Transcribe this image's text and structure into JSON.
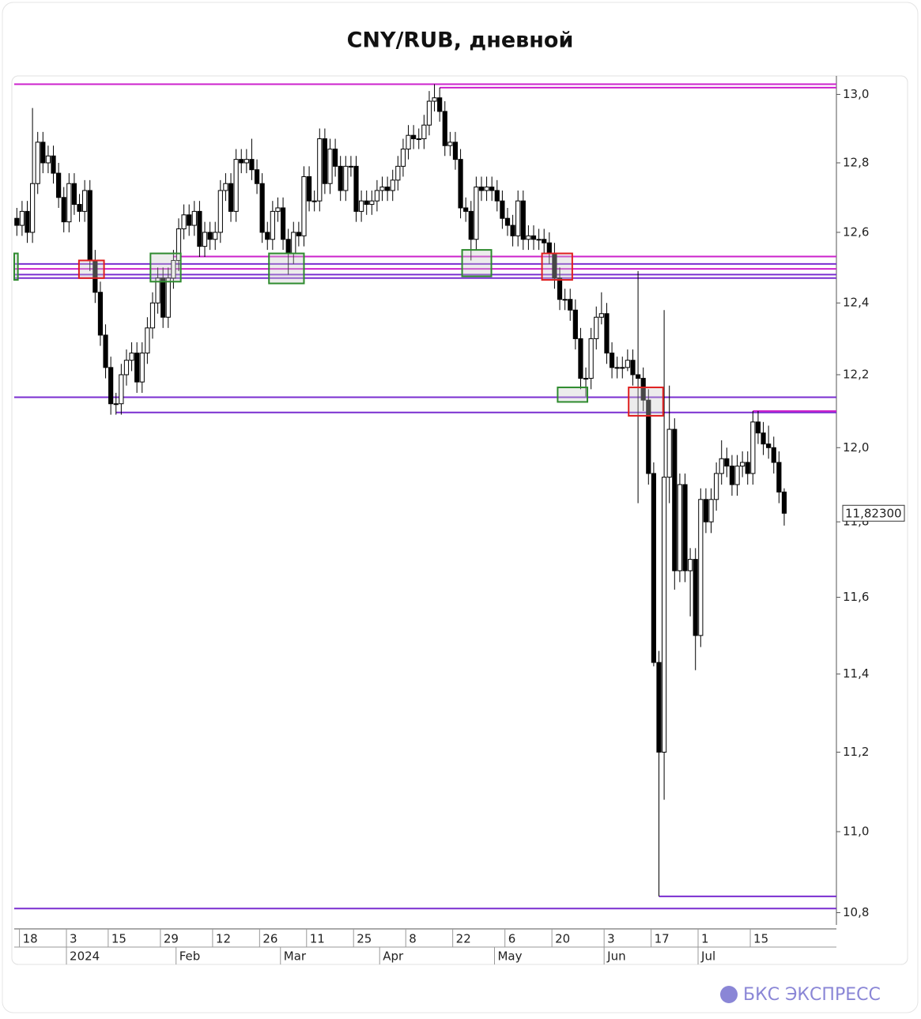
{
  "chart_data": {
    "type": "candlestick",
    "title": "CNY/RUB, дневной",
    "brand": "БКС ЭКСПРЕСС",
    "log_scale": true,
    "ylim": [
      10.77,
      13.05
    ],
    "xlim": [
      -0.5,
      157
    ],
    "yticks": [
      {
        "value": 10.8,
        "label": "10,8"
      },
      {
        "value": 11.0,
        "label": "11,0"
      },
      {
        "value": 11.2,
        "label": "11,2"
      },
      {
        "value": 11.4,
        "label": "11,4"
      },
      {
        "value": 11.6,
        "label": "11,6"
      },
      {
        "value": 11.8,
        "label": "11,8"
      },
      {
        "value": 12.0,
        "label": "12,0"
      },
      {
        "value": 12.2,
        "label": "12,2"
      },
      {
        "value": 12.4,
        "label": "12,4"
      },
      {
        "value": 12.6,
        "label": "12,6"
      },
      {
        "value": 12.8,
        "label": "12,8"
      },
      {
        "value": 13.0,
        "label": "13,0"
      }
    ],
    "xticks": [
      {
        "value": 1,
        "label": "18"
      },
      {
        "value": 10,
        "label": "3"
      },
      {
        "value": 18,
        "label": "15"
      },
      {
        "value": 28,
        "label": "29"
      },
      {
        "value": 38,
        "label": "12"
      },
      {
        "value": 47,
        "label": "26"
      },
      {
        "value": 56,
        "label": "11"
      },
      {
        "value": 65,
        "label": "25"
      },
      {
        "value": 75,
        "label": "8"
      },
      {
        "value": 84,
        "label": "22"
      },
      {
        "value": 94,
        "label": "6"
      },
      {
        "value": 103,
        "label": "20"
      },
      {
        "value": 113,
        "label": "3"
      },
      {
        "value": 122,
        "label": "17"
      },
      {
        "value": 131,
        "label": "1"
      },
      {
        "value": 141,
        "label": "15"
      }
    ],
    "month_ticks": [
      {
        "value": 10,
        "label": "2024"
      },
      {
        "value": 31,
        "label": "Feb"
      },
      {
        "value": 51,
        "label": "Mar"
      },
      {
        "value": 70,
        "label": "Apr"
      },
      {
        "value": 92,
        "label": "May"
      },
      {
        "value": 113,
        "label": "Jun"
      },
      {
        "value": 131,
        "label": "Jul"
      }
    ],
    "up_color": "#ffffff",
    "down_color": "#000000",
    "open": [
      12.64,
      12.62,
      12.66,
      12.6,
      12.74,
      12.86,
      12.8,
      12.82,
      12.77,
      12.7,
      12.63,
      12.74,
      12.68,
      12.66,
      12.72,
      12.52,
      12.43,
      12.31,
      12.22,
      12.12,
      12.12,
      12.2,
      12.24,
      12.26,
      12.18,
      12.26,
      12.33,
      12.4,
      12.47,
      12.36,
      12.47,
      12.52,
      12.61,
      12.65,
      12.62,
      12.66,
      12.56,
      12.6,
      12.58,
      12.6,
      12.72,
      12.74,
      12.66,
      12.81,
      12.8,
      12.81,
      12.78,
      12.74,
      12.6,
      12.58,
      12.66,
      12.67,
      12.58,
      12.54,
      12.6,
      12.59,
      12.76,
      12.69,
      12.69,
      12.87,
      12.74,
      12.84,
      12.79,
      12.72,
      12.79,
      12.79,
      12.66,
      12.69,
      12.68,
      12.69,
      12.72,
      12.73,
      12.72,
      12.75,
      12.79,
      12.84,
      12.88,
      12.87,
      12.87,
      12.91,
      12.98,
      12.99,
      12.95,
      12.85,
      12.86,
      12.81,
      12.67,
      12.66,
      12.58,
      12.73,
      12.72,
      12.73,
      12.72,
      12.69,
      12.64,
      12.62,
      12.59,
      12.69,
      12.58,
      12.59,
      12.58,
      12.58,
      12.57,
      12.54,
      12.47,
      12.41,
      12.41,
      12.38,
      12.3,
      12.19,
      12.19,
      12.3,
      12.36,
      12.37,
      12.26,
      12.22,
      12.22,
      12.22,
      12.24,
      12.2,
      12.19,
      12.13,
      11.93,
      11.43,
      11.2,
      11.92,
      12.05,
      11.67,
      11.9,
      11.67,
      11.7,
      11.5,
      11.86,
      11.8,
      11.86,
      11.93,
      11.97,
      11.95,
      11.9,
      11.95,
      11.96,
      11.93,
      12.07,
      12.04,
      12.01,
      12.0,
      11.96,
      11.88
    ],
    "high": [
      12.67,
      12.69,
      12.69,
      12.96,
      12.89,
      12.89,
      12.85,
      12.85,
      12.8,
      12.73,
      12.77,
      12.77,
      12.71,
      12.75,
      12.75,
      12.55,
      12.46,
      12.34,
      12.25,
      12.15,
      12.23,
      12.27,
      12.29,
      12.29,
      12.29,
      12.36,
      12.43,
      12.5,
      12.5,
      12.5,
      12.55,
      12.64,
      12.68,
      12.68,
      12.69,
      12.69,
      12.63,
      12.63,
      12.63,
      12.75,
      12.77,
      12.77,
      12.84,
      12.84,
      12.84,
      12.87,
      12.81,
      12.77,
      12.63,
      12.69,
      12.7,
      12.7,
      12.61,
      12.63,
      12.63,
      12.79,
      12.79,
      12.72,
      12.9,
      12.9,
      12.87,
      12.87,
      12.82,
      12.82,
      12.82,
      12.82,
      12.72,
      12.72,
      12.72,
      12.75,
      12.76,
      12.76,
      12.78,
      12.82,
      12.87,
      12.91,
      12.91,
      12.9,
      12.94,
      13.01,
      13.03,
      13.02,
      12.98,
      12.89,
      12.89,
      12.84,
      12.7,
      12.69,
      12.76,
      12.76,
      12.76,
      12.76,
      12.75,
      12.72,
      12.67,
      12.65,
      12.72,
      12.72,
      12.62,
      12.62,
      12.61,
      12.61,
      12.6,
      12.57,
      12.5,
      12.44,
      12.44,
      12.41,
      12.33,
      12.22,
      12.33,
      12.39,
      12.43,
      12.4,
      12.29,
      12.25,
      12.25,
      12.27,
      12.27,
      12.49,
      12.22,
      12.16,
      11.96,
      11.46,
      12.38,
      12.17,
      12.08,
      11.93,
      11.93,
      11.73,
      11.73,
      11.89,
      11.89,
      11.89,
      11.96,
      12.02,
      12.0,
      11.98,
      11.98,
      11.99,
      11.99,
      12.1,
      12.1,
      12.07,
      12.06,
      12.03,
      11.99,
      11.89
    ],
    "low": [
      12.59,
      12.59,
      12.57,
      12.57,
      12.71,
      12.77,
      12.77,
      12.74,
      12.67,
      12.6,
      12.6,
      12.65,
      12.63,
      12.63,
      12.49,
      12.4,
      12.28,
      12.19,
      12.09,
      12.09,
      12.09,
      12.17,
      12.21,
      12.15,
      12.15,
      12.23,
      12.3,
      12.37,
      12.33,
      12.33,
      12.44,
      12.49,
      12.58,
      12.59,
      12.59,
      12.53,
      12.53,
      12.55,
      12.55,
      12.57,
      12.69,
      12.63,
      12.63,
      12.77,
      12.77,
      12.75,
      12.71,
      12.57,
      12.55,
      12.55,
      12.63,
      12.55,
      12.48,
      12.51,
      12.56,
      12.56,
      12.66,
      12.66,
      12.66,
      12.71,
      12.71,
      12.76,
      12.69,
      12.69,
      12.76,
      12.63,
      12.63,
      12.65,
      12.65,
      12.66,
      12.69,
      12.69,
      12.69,
      12.72,
      12.76,
      12.81,
      12.84,
      12.84,
      12.84,
      12.88,
      12.95,
      12.92,
      12.82,
      12.82,
      12.78,
      12.64,
      12.63,
      12.52,
      12.55,
      12.69,
      12.69,
      12.69,
      12.66,
      12.61,
      12.59,
      12.56,
      12.56,
      12.55,
      12.55,
      12.55,
      12.55,
      12.54,
      12.51,
      12.44,
      12.38,
      12.38,
      12.35,
      12.27,
      12.16,
      12.14,
      12.16,
      12.27,
      12.34,
      12.23,
      12.19,
      12.19,
      12.19,
      12.21,
      12.17,
      11.85,
      12.1,
      11.9,
      11.42,
      10.84,
      11.08,
      11.85,
      11.62,
      11.64,
      11.64,
      11.55,
      11.41,
      11.47,
      11.77,
      11.77,
      11.83,
      11.9,
      11.92,
      11.87,
      11.87,
      11.92,
      11.9,
      11.9,
      12.01,
      11.98,
      11.97,
      11.93,
      11.85,
      11.79
    ],
    "close": [
      12.62,
      12.66,
      12.6,
      12.74,
      12.86,
      12.8,
      12.82,
      12.77,
      12.7,
      12.63,
      12.74,
      12.68,
      12.66,
      12.72,
      12.52,
      12.43,
      12.31,
      12.22,
      12.12,
      12.12,
      12.2,
      12.24,
      12.26,
      12.18,
      12.26,
      12.33,
      12.4,
      12.47,
      12.36,
      12.47,
      12.52,
      12.61,
      12.65,
      12.62,
      12.66,
      12.56,
      12.6,
      12.58,
      12.6,
      12.72,
      12.74,
      12.66,
      12.81,
      12.8,
      12.81,
      12.78,
      12.74,
      12.6,
      12.58,
      12.66,
      12.67,
      12.58,
      12.54,
      12.6,
      12.59,
      12.76,
      12.69,
      12.69,
      12.87,
      12.74,
      12.84,
      12.79,
      12.72,
      12.79,
      12.79,
      12.66,
      12.69,
      12.68,
      12.69,
      12.72,
      12.73,
      12.72,
      12.75,
      12.79,
      12.84,
      12.88,
      12.87,
      12.87,
      12.91,
      12.98,
      12.99,
      12.95,
      12.85,
      12.86,
      12.81,
      12.67,
      12.66,
      12.58,
      12.73,
      12.72,
      12.73,
      12.72,
      12.69,
      12.64,
      12.62,
      12.59,
      12.69,
      12.58,
      12.59,
      12.58,
      12.58,
      12.57,
      12.54,
      12.47,
      12.41,
      12.41,
      12.38,
      12.3,
      12.19,
      12.19,
      12.3,
      12.36,
      12.37,
      12.26,
      12.22,
      12.22,
      12.22,
      12.24,
      12.2,
      12.19,
      12.13,
      11.93,
      11.43,
      11.2,
      11.92,
      12.05,
      11.67,
      11.9,
      11.67,
      11.7,
      11.5,
      11.86,
      11.8,
      11.86,
      11.93,
      11.97,
      11.95,
      11.9,
      11.95,
      11.96,
      11.93,
      12.07,
      12.04,
      12.01,
      12.0,
      11.96,
      11.88,
      11.823
    ],
    "last_price_label": "11,82300",
    "levels": [
      {
        "value": 13.03,
        "from": -0.5,
        "color": "#cc22cc"
      },
      {
        "value": 13.02,
        "from": 81,
        "color": "#cc22cc"
      },
      {
        "value": 12.531,
        "from": 30,
        "color": "#cc22cc"
      },
      {
        "value": 12.51,
        "from": -0.5,
        "color": "#7a2ed0"
      },
      {
        "value": 12.496,
        "from": -0.5,
        "color": "#cc22cc"
      },
      {
        "value": 12.48,
        "from": -0.5,
        "color": "#7a2ed0"
      },
      {
        "value": 12.47,
        "from": -0.5,
        "color": "#7a2ed0"
      },
      {
        "value": 12.138,
        "from": -0.5,
        "color": "#7a2ed0"
      },
      {
        "value": 12.096,
        "from": 19,
        "color": "#7a2ed0"
      },
      {
        "value": 12.1,
        "from": 141,
        "color": "#cc22cc"
      },
      {
        "value": 10.84,
        "from": 123,
        "color": "#7a2ed0"
      },
      {
        "value": 10.81,
        "from": -0.5,
        "color": "#7a2ed0"
      }
    ],
    "zones": [
      {
        "from": -0.5,
        "to": 0.2,
        "low": 12.465,
        "high": 12.54,
        "color": "#2e8b2e"
      },
      {
        "from": 11.9,
        "to": 16.7,
        "low": 12.47,
        "high": 12.52,
        "color": "#e02020"
      },
      {
        "from": 25.6,
        "to": 31.4,
        "low": 12.46,
        "high": 12.54,
        "color": "#2e8b2e"
      },
      {
        "from": 48.3,
        "to": 55,
        "low": 12.455,
        "high": 12.54,
        "color": "#2e8b2e"
      },
      {
        "from": 85.3,
        "to": 90.9,
        "low": 12.475,
        "high": 12.55,
        "color": "#2e8b2e"
      },
      {
        "from": 103.6,
        "to": 109.3,
        "low": 12.125,
        "high": 12.165,
        "color": "#2e8b2e"
      },
      {
        "from": 100.6,
        "to": 106.4,
        "low": 12.465,
        "high": 12.54,
        "color": "#e02020"
      },
      {
        "from": 117.2,
        "to": 123.8,
        "low": 12.087,
        "high": 12.165,
        "color": "#e02020"
      }
    ]
  }
}
